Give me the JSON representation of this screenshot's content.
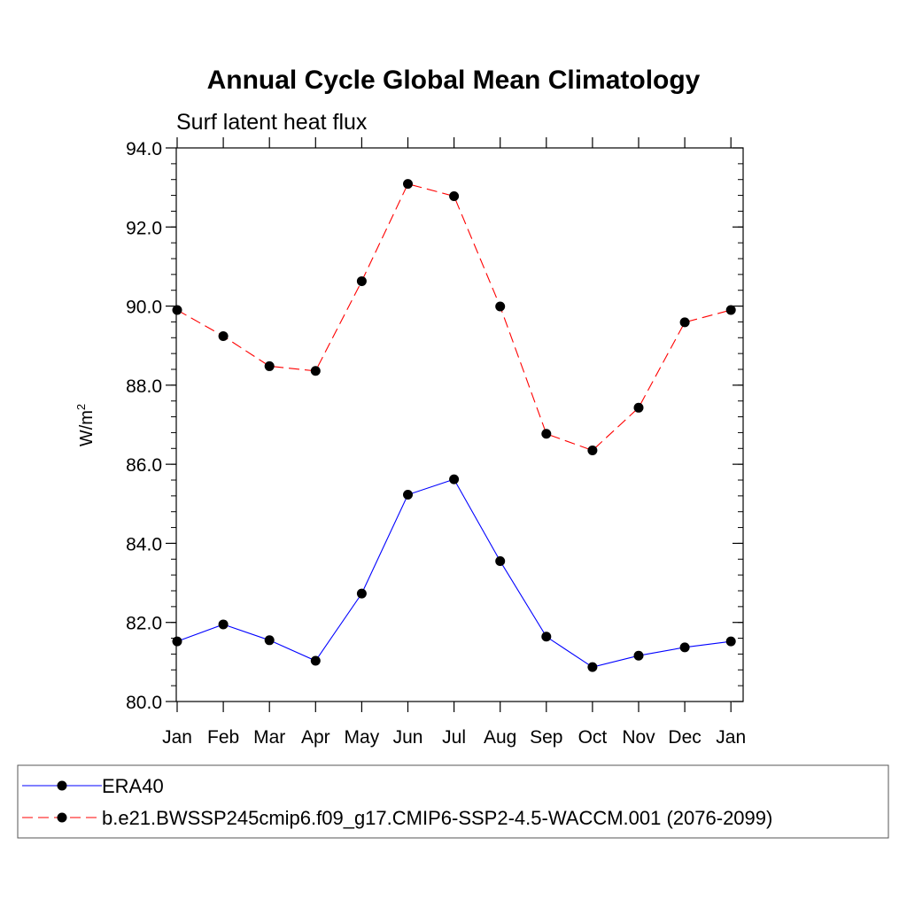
{
  "chart_data": {
    "type": "line",
    "title": "Annual Cycle Global Mean Climatology",
    "subtitle": "Surf latent heat flux",
    "ylabel_base": "W/m",
    "ylabel_sup": "2",
    "xlabel": "",
    "categories": [
      "Jan",
      "Feb",
      "Mar",
      "Apr",
      "May",
      "Jun",
      "Jul",
      "Aug",
      "Sep",
      "Oct",
      "Nov",
      "Dec",
      "Jan"
    ],
    "ylim": [
      80.0,
      94.0
    ],
    "yticks": [
      "80.0",
      "82.0",
      "84.0",
      "86.0",
      "88.0",
      "90.0",
      "92.0",
      "94.0"
    ],
    "grid": false,
    "legend_position": "bottom",
    "series": [
      {
        "name": "ERA40",
        "color": "#0000ff",
        "style": "solid",
        "marker": "filled-circle",
        "values": [
          81.52,
          81.95,
          81.55,
          81.03,
          82.73,
          85.23,
          85.62,
          83.55,
          81.64,
          80.87,
          81.16,
          81.37,
          81.52
        ]
      },
      {
        "name": "b.e21.BWSSP245cmip6.f09_g17.CMIP6-SSP2-4.5-WACCM.001 (2076-2099)",
        "color": "#ff0000",
        "style": "dashed",
        "marker": "filled-circle",
        "values": [
          89.9,
          89.24,
          88.48,
          88.36,
          90.63,
          93.09,
          92.78,
          89.99,
          86.77,
          86.35,
          87.43,
          89.59,
          89.9
        ]
      }
    ]
  }
}
